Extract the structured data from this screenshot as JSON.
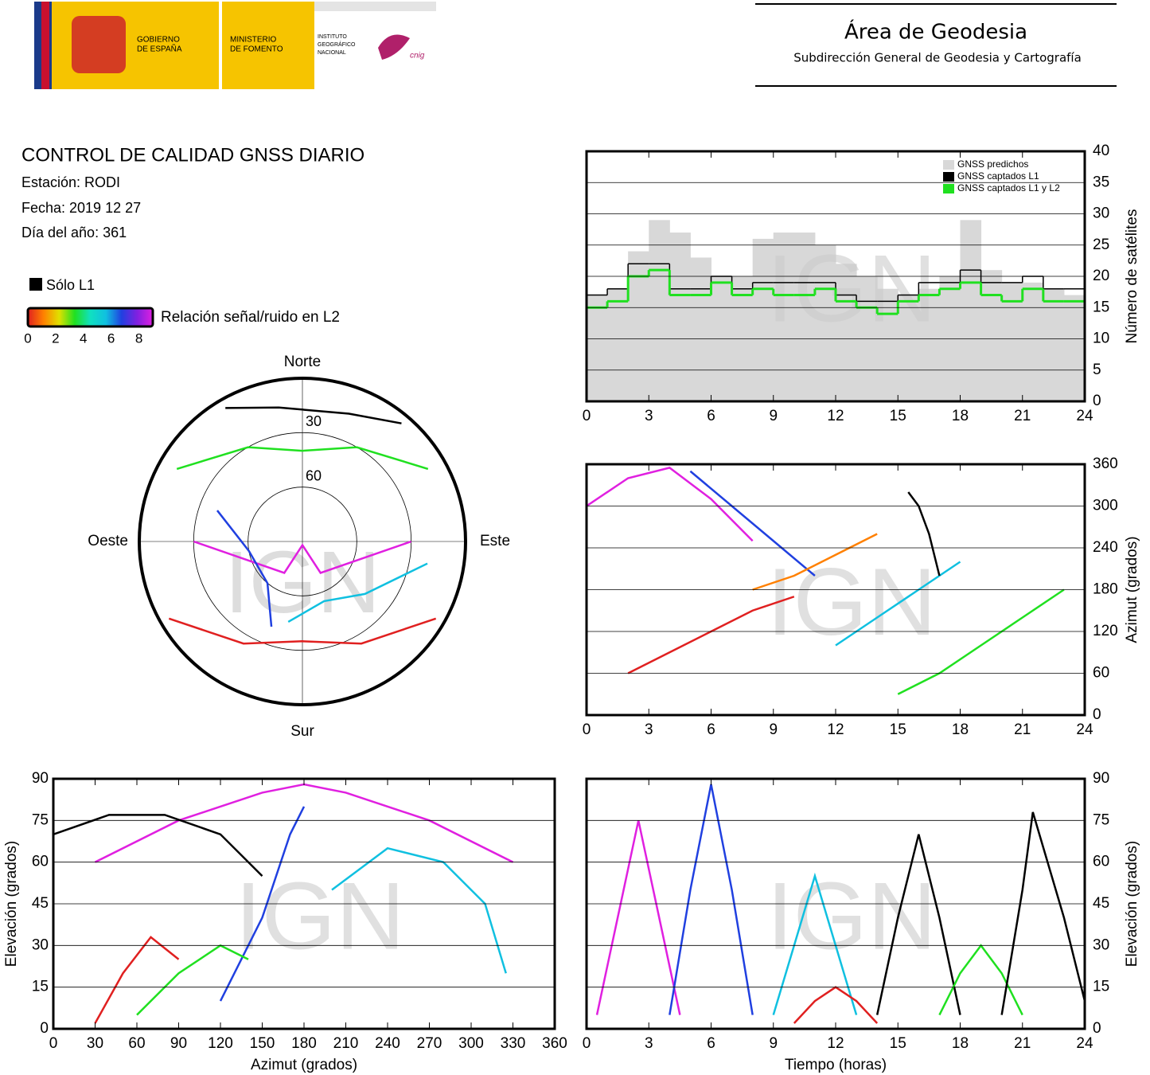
{
  "header": {
    "gobierno": [
      "GOBIERNO",
      "DE ESPAÑA"
    ],
    "ministerio": [
      "MINISTERIO",
      "DE FOMENTO"
    ],
    "instituto": [
      "INSTITUTO",
      "GEOGRÁFICO",
      "NACIONAL"
    ],
    "cnig": "cnig",
    "area": "Área de Geodesia",
    "subdireccion": "Subdirección General de Geodesia y Cartografía"
  },
  "report": {
    "title": "CONTROL DE CALIDAD GNSS DIARIO",
    "station": "Estación: RODI",
    "date": "Fecha: 2019 12 27",
    "doy": "Día del año: 361",
    "l1_only": "Sólo L1"
  },
  "colorbar": {
    "label": "Relación señal/ruido en L2",
    "lim": [
      0,
      9
    ],
    "ticks": [
      0,
      2,
      4,
      6,
      8
    ],
    "colors": [
      "#e02020",
      "#ff8000",
      "#e0e000",
      "#20e020",
      "#10e0c0",
      "#10c0e0",
      "#2040e0",
      "#8020e0",
      "#e020e0"
    ]
  },
  "chart_data": [
    {
      "type": "polar",
      "watermark": "IGN",
      "north": "Norte",
      "south": "Sur",
      "east": "Este",
      "west": "Oeste",
      "rlim": [
        90,
        0
      ],
      "rticks": [
        30,
        60
      ],
      "series": [
        {
          "color": "#e020e0",
          "azimuth": [
            90,
            150,
            180,
            210,
            270
          ],
          "elevation": [
            30,
            70,
            88,
            70,
            30
          ]
        },
        {
          "color": "#20e020",
          "azimuth": [
            300,
            330,
            0,
            30,
            60
          ],
          "elevation": [
            10,
            30,
            40,
            30,
            10
          ]
        },
        {
          "color": "#e02020",
          "azimuth": [
            120,
            150,
            180,
            210,
            240
          ],
          "elevation": [
            5,
            25,
            35,
            25,
            5
          ]
        },
        {
          "color": "#2040e0",
          "azimuth": [
            200,
            220,
            260,
            290
          ],
          "elevation": [
            40,
            60,
            60,
            40
          ]
        },
        {
          "color": "#10c0e0",
          "azimuth": [
            100,
            130,
            160,
            190
          ],
          "elevation": [
            20,
            45,
            55,
            45
          ]
        },
        {
          "color": "#000000",
          "azimuth": [
            330,
            350,
            20,
            40
          ],
          "elevation": [
            5,
            15,
            15,
            5
          ]
        }
      ]
    },
    {
      "type": "line",
      "watermark": "IGN",
      "ylabel": "Número de satélites",
      "yaxis_side": "right",
      "grid": true,
      "legend": "upper right",
      "xlim": [
        0,
        24
      ],
      "xticks": [
        0,
        3,
        6,
        9,
        12,
        15,
        18,
        21,
        24
      ],
      "ylim": [
        0,
        40
      ],
      "yticks": [
        0,
        5,
        10,
        15,
        20,
        25,
        30,
        35,
        40
      ],
      "x": [
        0,
        1,
        2,
        3,
        4,
        5,
        6,
        7,
        8,
        9,
        10,
        11,
        12,
        13,
        14,
        15,
        16,
        17,
        18,
        19,
        20,
        21,
        22,
        23
      ],
      "series": [
        {
          "name": "GNSS predichos",
          "color": "#d8d8d8",
          "style": "area",
          "values": [
            17,
            18,
            24,
            29,
            27,
            23,
            20,
            20,
            26,
            27,
            27,
            25,
            22,
            20,
            18,
            17,
            18,
            20,
            29,
            21,
            19,
            19,
            18,
            17
          ]
        },
        {
          "name": "GNSS captados L1",
          "color": "#000000",
          "style": "step",
          "values": [
            17,
            18,
            22,
            22,
            18,
            18,
            20,
            18,
            19,
            19,
            19,
            19,
            17,
            16,
            16,
            17,
            19,
            19,
            21,
            19,
            19,
            20,
            18,
            18
          ]
        },
        {
          "name": "GNSS captados L1 y L2",
          "color": "#20e020",
          "style": "step",
          "values": [
            15,
            16,
            20,
            21,
            17,
            17,
            19,
            17,
            18,
            17,
            17,
            18,
            16,
            15,
            14,
            16,
            17,
            18,
            19,
            17,
            16,
            18,
            16,
            16
          ]
        }
      ]
    },
    {
      "type": "track",
      "watermark": "IGN",
      "ylabel": "Azimut (grados)",
      "yaxis_side": "right",
      "grid": true,
      "xlim": [
        0,
        24
      ],
      "xticks": [
        0,
        3,
        6,
        9,
        12,
        15,
        18,
        21,
        24
      ],
      "ylim": [
        0,
        360
      ],
      "yticks": [
        0,
        60,
        120,
        180,
        240,
        300,
        360
      ],
      "series": [
        {
          "color": "#e020e0",
          "x": [
            0,
            2,
            4,
            6,
            8
          ],
          "values": [
            300,
            340,
            355,
            310,
            250
          ]
        },
        {
          "color": "#2040e0",
          "x": [
            5,
            7,
            9,
            11
          ],
          "values": [
            350,
            300,
            250,
            200
          ]
        },
        {
          "color": "#10c0e0",
          "x": [
            12,
            14,
            16,
            18
          ],
          "values": [
            100,
            140,
            180,
            220
          ]
        },
        {
          "color": "#e02020",
          "x": [
            2,
            4,
            6,
            8,
            10
          ],
          "values": [
            60,
            90,
            120,
            150,
            170
          ]
        },
        {
          "color": "#20e020",
          "x": [
            15,
            17,
            19,
            21,
            23
          ],
          "values": [
            30,
            60,
            100,
            140,
            180
          ]
        },
        {
          "color": "#000000",
          "x": [
            15.5,
            16,
            16.5,
            17
          ],
          "values": [
            320,
            300,
            260,
            200
          ]
        },
        {
          "color": "#ff8000",
          "x": [
            8,
            10,
            12,
            14
          ],
          "values": [
            180,
            200,
            230,
            260
          ]
        }
      ]
    },
    {
      "type": "track",
      "watermark": "IGN",
      "xlabel": "Azimut (grados)",
      "ylabel": "Elevación (grados)",
      "yaxis_side": "left",
      "grid": true,
      "xlim": [
        0,
        360
      ],
      "xticks": [
        0,
        30,
        60,
        90,
        120,
        150,
        180,
        210,
        240,
        270,
        300,
        330,
        360
      ],
      "ylim": [
        0,
        90
      ],
      "yticks": [
        0,
        15,
        30,
        45,
        60,
        75,
        90
      ],
      "series": [
        {
          "color": "#e020e0",
          "x": [
            30,
            90,
            150,
            180,
            210,
            270,
            330
          ],
          "values": [
            60,
            75,
            85,
            88,
            85,
            75,
            60
          ]
        },
        {
          "color": "#2040e0",
          "x": [
            120,
            150,
            170,
            180
          ],
          "values": [
            10,
            40,
            70,
            80
          ]
        },
        {
          "color": "#000000",
          "x": [
            0,
            40,
            80,
            120,
            150
          ],
          "values": [
            70,
            77,
            77,
            70,
            55
          ]
        },
        {
          "color": "#10c0e0",
          "x": [
            200,
            240,
            280,
            310,
            325
          ],
          "values": [
            50,
            65,
            60,
            45,
            20
          ]
        },
        {
          "color": "#20e020",
          "x": [
            60,
            90,
            120,
            140
          ],
          "values": [
            5,
            20,
            30,
            25
          ]
        },
        {
          "color": "#e02020",
          "x": [
            30,
            50,
            70,
            90
          ],
          "values": [
            2,
            20,
            33,
            25
          ]
        }
      ]
    },
    {
      "type": "track",
      "watermark": "IGN",
      "xlabel": "Tiempo (horas)",
      "ylabel": "Elevación (grados)",
      "yaxis_side": "right",
      "grid": true,
      "xlim": [
        0,
        24
      ],
      "xticks": [
        0,
        3,
        6,
        9,
        12,
        15,
        18,
        21,
        24
      ],
      "ylim": [
        0,
        90
      ],
      "yticks": [
        0,
        15,
        30,
        45,
        60,
        75,
        90
      ],
      "series": [
        {
          "color": "#e020e0",
          "x": [
            0.5,
            1.5,
            2.5,
            3.5,
            4.5
          ],
          "values": [
            5,
            40,
            75,
            40,
            5
          ]
        },
        {
          "color": "#2040e0",
          "x": [
            4,
            5,
            6,
            7,
            8
          ],
          "values": [
            5,
            50,
            88,
            50,
            5
          ]
        },
        {
          "color": "#10c0e0",
          "x": [
            9,
            10,
            11,
            12,
            13
          ],
          "values": [
            5,
            30,
            55,
            30,
            5
          ]
        },
        {
          "color": "#000000",
          "x": [
            14,
            15,
            16,
            17,
            18
          ],
          "values": [
            5,
            40,
            70,
            40,
            5
          ]
        },
        {
          "color": "#20e020",
          "x": [
            17,
            18,
            19,
            20,
            21
          ],
          "values": [
            5,
            20,
            30,
            20,
            5
          ]
        },
        {
          "color": "#000000",
          "x": [
            20,
            21,
            21.5,
            23,
            24
          ],
          "values": [
            5,
            50,
            78,
            40,
            10
          ]
        },
        {
          "color": "#e02020",
          "x": [
            10,
            11,
            12,
            13,
            14
          ],
          "values": [
            2,
            10,
            15,
            10,
            2
          ]
        }
      ]
    }
  ]
}
